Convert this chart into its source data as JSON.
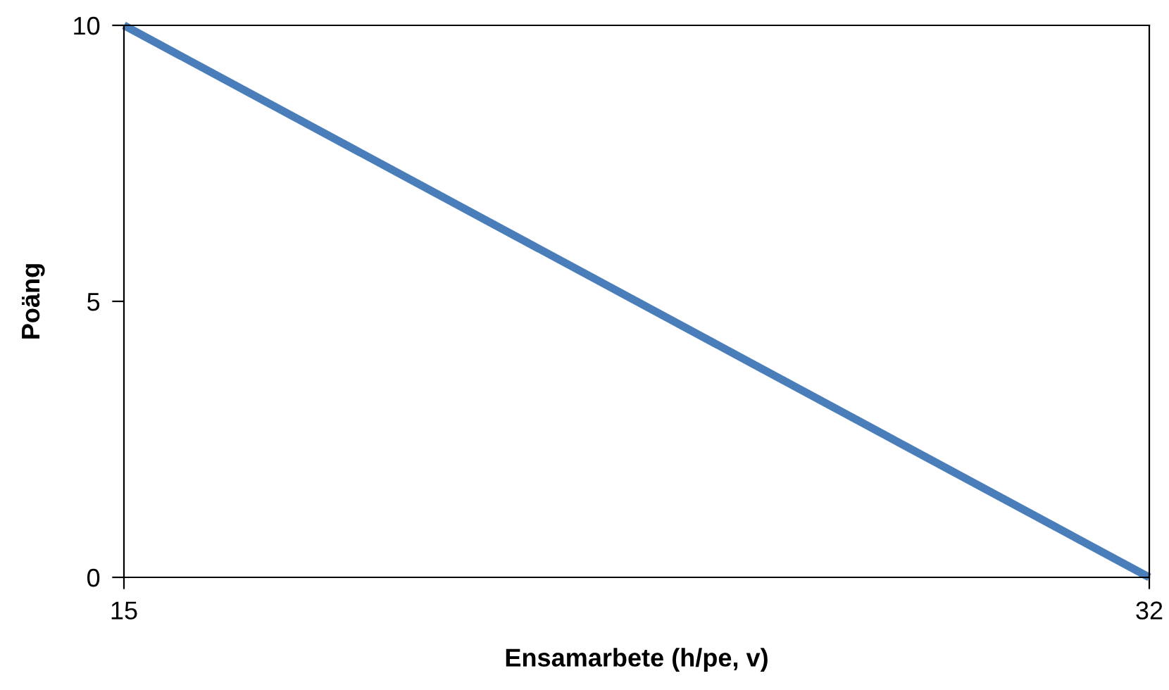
{
  "chart_data": {
    "type": "line",
    "xlabel": "Ensamarbete (h/pe, v)",
    "ylabel": "Poäng",
    "x": [
      15,
      32
    ],
    "series": [
      {
        "color": "#4a7ebb",
        "values": [
          10,
          0
        ]
      }
    ],
    "xlim": [
      15,
      32
    ],
    "xticks": [
      15,
      32
    ],
    "ylim": [
      0,
      10
    ],
    "yticks": [
      0,
      5,
      10
    ],
    "grid": false,
    "marker": "none",
    "line_style": "solid"
  }
}
